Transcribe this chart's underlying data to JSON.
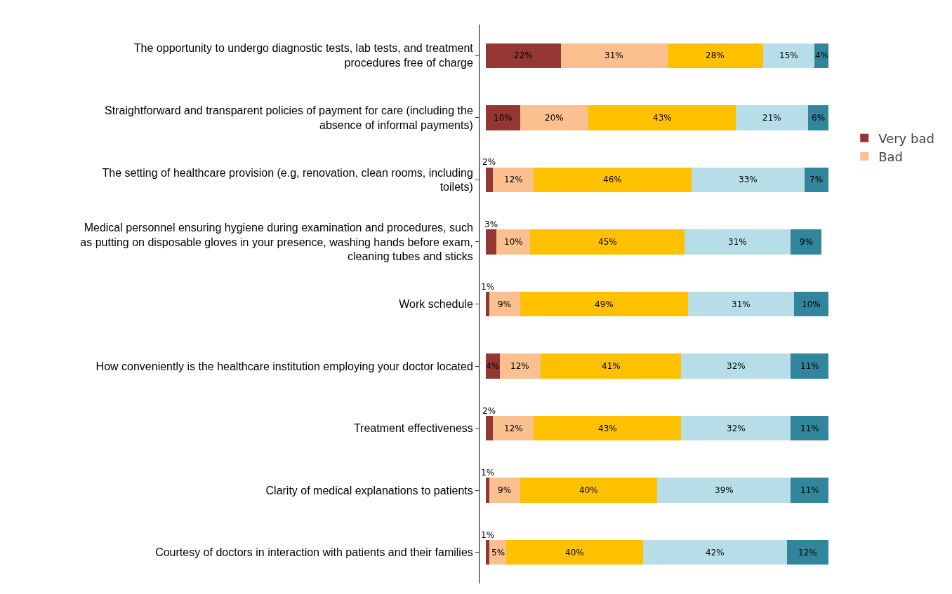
{
  "chart_data": {
    "type": "bar",
    "orientation": "horizontal",
    "stacked": true,
    "legend": "right",
    "tick_labels": "y",
    "grid": false,
    "categories": [
      "The opportunity to undergo diagnostic tests, lab tests, and treatment procedures free of charge",
      "Straightforward and transparent policies of payment for care (including the absence of informal payments)",
      "The setting of healthcare provision (e.g, renovation, clean rooms, including toilets)",
      "Medical personnel ensuring hygiene during examination and procedures, such as putting on disposable gloves in your presence, washing hands before exam, cleaning tubes and sticks",
      "Work schedule",
      "How conveniently is the healthcare institution employing your doctor located",
      "Treatment effectiveness",
      "Clarity of medical explanations to patients",
      "Courtesy of doctors in interaction with patients and their families"
    ],
    "series": [
      {
        "name": "Very bad",
        "color": "#943634",
        "values": [
          22,
          10,
          2,
          3,
          1,
          4,
          2,
          1,
          1
        ],
        "value_labels": [
          "22%",
          "10%",
          "2%",
          "3%",
          "1%",
          "4%",
          "2%",
          "1%",
          "1%"
        ]
      },
      {
        "name": "Bad",
        "color": "#fac090",
        "values": [
          31,
          20,
          12,
          10,
          9,
          12,
          12,
          9,
          5
        ],
        "value_labels": [
          "31%",
          "20%",
          "12%",
          "10%",
          "9%",
          "12%",
          "12%",
          "9%",
          "5%"
        ]
      },
      {
        "color": "#ffc000",
        "values": [
          28,
          43,
          46,
          45,
          49,
          41,
          43,
          40,
          40
        ],
        "value_labels": [
          "28%",
          "43%",
          "46%",
          "45%",
          "49%",
          "41%",
          "43%",
          "40%",
          "40%"
        ]
      },
      {
        "color": "#b7dee8",
        "values": [
          15,
          21,
          33,
          31,
          31,
          32,
          32,
          39,
          42
        ],
        "value_labels": [
          "15%",
          "21%",
          "33%",
          "31%",
          "31%",
          "32%",
          "32%",
          "39%",
          "42%"
        ]
      },
      {
        "color": "#31859c",
        "values": [
          4,
          6,
          7,
          9,
          10,
          11,
          11,
          11,
          12
        ],
        "value_labels": [
          "4%",
          "6%",
          "7%",
          "9%",
          "10%",
          "11%",
          "11%",
          "11%",
          "12%"
        ]
      }
    ]
  }
}
